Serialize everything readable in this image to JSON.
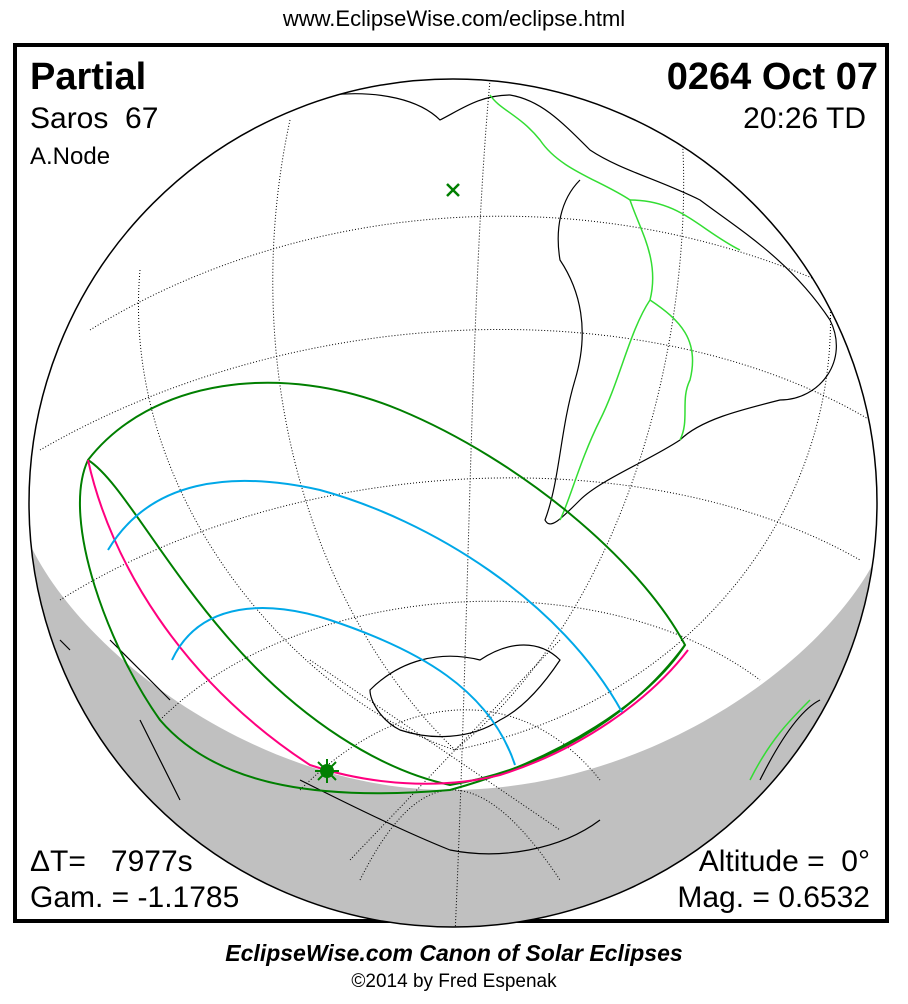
{
  "header_url": "www.EclipseWise.com/eclipse.html",
  "eclipse": {
    "type": "Partial",
    "date": "0264 Oct 07",
    "saros": "Saros  67",
    "time": "20:26 TD",
    "node": "A.Node",
    "delta_t": "ΔT=   7977s",
    "altitude": "Altitude =  0°",
    "gamma": "Gam. = -1.1785",
    "magnitude": "Mag. = 0.6532"
  },
  "footer": {
    "title": "EclipseWise.com Canon of Solar Eclipses",
    "copyright": "©2014 by Fred Espenak"
  },
  "colors": {
    "night": "#c0c0c0",
    "penumbra_limits": "#007f00",
    "magnitude_lines": "#00a8e8",
    "rise_set_curve": "#ff007f",
    "borders": "#33dd33"
  },
  "markers": {
    "greatest_eclipse": "star-icon",
    "subsolar_point": "x-icon"
  }
}
